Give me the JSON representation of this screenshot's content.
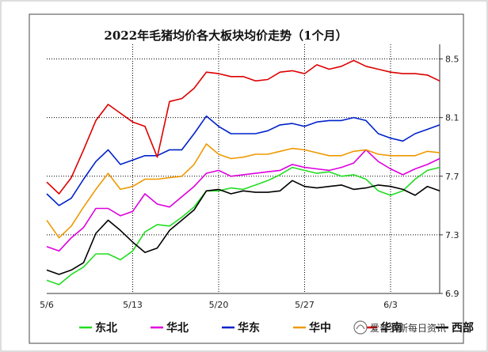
{
  "chart_data": {
    "type": "line",
    "title": "2022年毛猪均价各大板块均价走势（1个月）",
    "x_labels": [
      "5/6",
      "5/13",
      "5/20",
      "5/27",
      "6/3"
    ],
    "y_ticks": [
      "6.9",
      "7.3",
      "7.7",
      "8.1",
      "8.5"
    ],
    "ylim": [
      6.9,
      8.6
    ],
    "grid": true,
    "legend_position": "bottom",
    "x": [
      "5/6",
      "5/7",
      "5/8",
      "5/9",
      "5/10",
      "5/11",
      "5/12",
      "5/13",
      "5/14",
      "5/15",
      "5/16",
      "5/17",
      "5/18",
      "5/19",
      "5/20",
      "5/21",
      "5/22",
      "5/23",
      "5/24",
      "5/25",
      "5/26",
      "5/27",
      "5/28",
      "5/29",
      "5/30",
      "5/31",
      "6/1",
      "6/2",
      "6/3",
      "6/4",
      "6/5",
      "6/6",
      "6/7"
    ],
    "series": [
      {
        "name": "东北",
        "color": "#22dd22",
        "values": [
          6.99,
          6.96,
          7.03,
          7.08,
          7.17,
          7.17,
          7.13,
          7.19,
          7.32,
          7.37,
          7.36,
          7.42,
          7.49,
          7.6,
          7.6,
          7.62,
          7.61,
          7.64,
          7.67,
          7.71,
          7.76,
          7.74,
          7.72,
          7.73,
          7.7,
          7.71,
          7.68,
          7.6,
          7.57,
          7.6,
          7.68,
          7.74,
          7.76
        ]
      },
      {
        "name": "华北",
        "color": "#dd00dd",
        "values": [
          7.22,
          7.19,
          7.28,
          7.35,
          7.48,
          7.48,
          7.43,
          7.46,
          7.58,
          7.51,
          7.49,
          7.56,
          7.63,
          7.72,
          7.74,
          7.7,
          7.71,
          7.72,
          7.73,
          7.74,
          7.78,
          7.76,
          7.75,
          7.74,
          7.76,
          7.79,
          7.88,
          7.8,
          7.75,
          7.71,
          7.75,
          7.78,
          7.82
        ]
      },
      {
        "name": "华东",
        "color": "#0022cc",
        "values": [
          7.58,
          7.5,
          7.55,
          7.68,
          7.8,
          7.88,
          7.78,
          7.81,
          7.84,
          7.84,
          7.88,
          7.88,
          7.99,
          8.11,
          8.04,
          7.99,
          7.99,
          7.99,
          8.01,
          8.05,
          8.06,
          8.04,
          8.07,
          8.08,
          8.08,
          8.1,
          8.08,
          7.99,
          7.96,
          7.94,
          7.99,
          8.02,
          8.05
        ]
      },
      {
        "name": "华中",
        "color": "#ee9900",
        "values": [
          7.4,
          7.28,
          7.36,
          7.49,
          7.61,
          7.72,
          7.61,
          7.63,
          7.68,
          7.68,
          7.69,
          7.7,
          7.78,
          7.92,
          7.85,
          7.82,
          7.83,
          7.85,
          7.85,
          7.87,
          7.89,
          7.88,
          7.86,
          7.84,
          7.84,
          7.87,
          7.88,
          7.85,
          7.84,
          7.84,
          7.84,
          7.87,
          7.86
        ]
      },
      {
        "name": "华南",
        "color": "#dd0000",
        "values": [
          7.66,
          7.58,
          7.69,
          7.88,
          8.08,
          8.19,
          8.13,
          8.07,
          8.04,
          7.83,
          8.21,
          8.23,
          8.3,
          8.41,
          8.4,
          8.38,
          8.38,
          8.35,
          8.36,
          8.41,
          8.42,
          8.4,
          8.46,
          8.43,
          8.45,
          8.49,
          8.45,
          8.43,
          8.41,
          8.4,
          8.4,
          8.39,
          8.35
        ]
      },
      {
        "name": "西部",
        "color": "#000000",
        "values": [
          7.06,
          7.03,
          7.06,
          7.11,
          7.31,
          7.4,
          7.33,
          7.25,
          7.18,
          7.21,
          7.33,
          7.4,
          7.47,
          7.6,
          7.61,
          7.58,
          7.6,
          7.59,
          7.59,
          7.6,
          7.67,
          7.63,
          7.62,
          7.63,
          7.64,
          7.61,
          7.62,
          7.64,
          7.63,
          7.61,
          7.57,
          7.63,
          7.6
        ]
      }
    ]
  },
  "watermark": "爱普罗斯每日资讯"
}
